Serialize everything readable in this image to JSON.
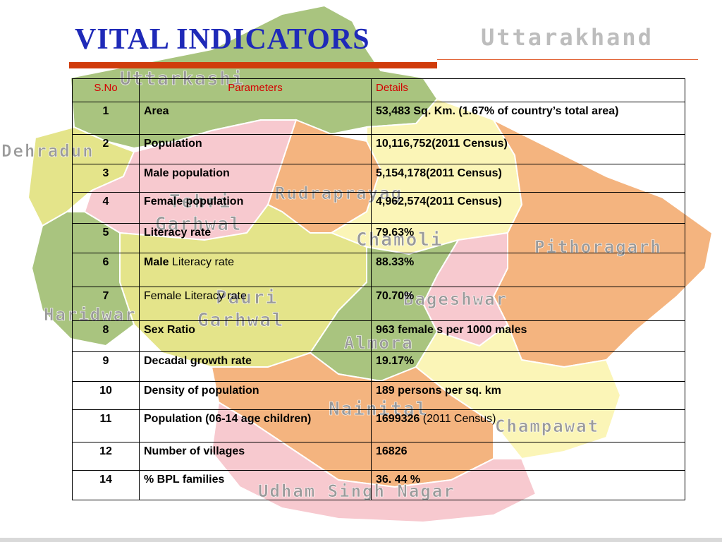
{
  "header": {
    "title": "VITAL INDICATORS",
    "state": "Uttarakhand"
  },
  "map_labels": {
    "uttarkashi": "Uttarkashi",
    "dehradun": "Dehradun",
    "rudraprayag": "Rudraprayag",
    "tehri_garhwal_1": "Tehri",
    "tehri_garhwal_2": "Garhwal",
    "chamoli": "Chamoli",
    "pithoragarh": "Pithoragarh",
    "pauri_garhwal_1": "Pauri",
    "pauri_garhwal_2": "Garhwal",
    "bageshwar": "Bageshwar",
    "haridwar": "Haridwar",
    "almora": "Almora",
    "nainital": "Nainital",
    "champawat": "Champawat",
    "udham_singh_nagar": "Udham Singh Nagar"
  },
  "table": {
    "headers": {
      "sno": "S.No",
      "parameters": "Parameters",
      "details": "Details"
    },
    "rows": [
      {
        "sno": "1",
        "param_bold": "Area",
        "param_rest": "",
        "detail_bold": "53,483 Sq. Km. (1.67% of country’s total area)",
        "detail_rest": ""
      },
      {
        "sno": "2",
        "param_bold": "Population",
        "param_rest": "",
        "detail_bold": "10,116,752(2011 Census)",
        "detail_rest": ""
      },
      {
        "sno": "3",
        "param_bold": "Male population",
        "param_rest": "",
        "detail_bold": "5,154,178(2011 Census)",
        "detail_rest": ""
      },
      {
        "sno": "4",
        "param_bold": "Female population",
        "param_rest": "",
        "detail_bold": "4,962,574(2011 Census)",
        "detail_rest": ""
      },
      {
        "sno": "5",
        "param_bold": "Literacy rate",
        "param_rest": "",
        "detail_bold": "79.63%",
        "detail_rest": ""
      },
      {
        "sno": "6",
        "param_bold": "Male",
        "param_rest": " Literacy rate",
        "detail_bold": "88.33%",
        "detail_rest": ""
      },
      {
        "sno": "7",
        "param_bold": "",
        "param_rest": "Female Literacy rate",
        "detail_bold": "70.70%",
        "detail_rest": ""
      },
      {
        "sno": "8",
        "param_bold": "Sex Ratio",
        "param_rest": "",
        "detail_bold": "963 female s per 1000 males",
        "detail_rest": ""
      },
      {
        "sno": "9",
        "param_bold": "Decadal growth rate",
        "param_rest": "",
        "detail_bold": "19.17%",
        "detail_rest": ""
      },
      {
        "sno": "10",
        "param_bold": "Density of population",
        "param_rest": "",
        "detail_bold": "189 persons per sq. km",
        "detail_rest": ""
      },
      {
        "sno": "11",
        "param_bold": "Population (06-14 age children)",
        "param_rest": "",
        "detail_bold": "1699326",
        "detail_rest": " (2011 Census)"
      },
      {
        "sno": "12",
        "param_bold": "Number of villages",
        "param_rest": "",
        "detail_bold": "16826",
        "detail_rest": ""
      },
      {
        "sno": "14",
        "param_bold": "% BPL families",
        "param_rest": "",
        "detail_bold": "36. 44 %",
        "detail_rest": ""
      }
    ]
  },
  "colors": {
    "title": "#1f2ab8",
    "header_text": "#d40000",
    "rule": "#d03c0c",
    "green": "#a9c47f",
    "pink": "#f7c9cf",
    "orange": "#f4b47f",
    "yellow": "#fbf5b7",
    "olive": "#e4e48a"
  }
}
